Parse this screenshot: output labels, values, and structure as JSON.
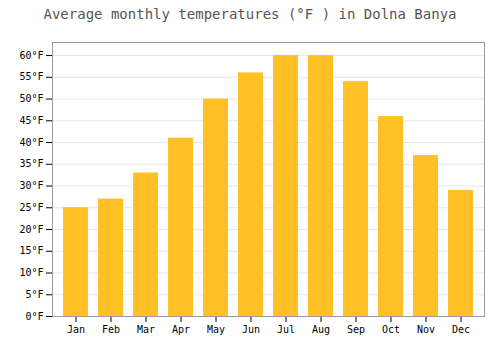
{
  "chart_data": {
    "type": "bar",
    "title": "Average monthly temperatures (°F ) in Dolna Banya",
    "categories": [
      "Jan",
      "Feb",
      "Mar",
      "Apr",
      "May",
      "Jun",
      "Jul",
      "Aug",
      "Sep",
      "Oct",
      "Nov",
      "Dec"
    ],
    "values": [
      25,
      27,
      33,
      41,
      50,
      56,
      60,
      60,
      54,
      46,
      37,
      29
    ],
    "color": "#FFC125",
    "ylim": [
      0,
      63
    ],
    "yticks": [
      {
        "value": 0,
        "label": "0°F"
      },
      {
        "value": 5,
        "label": "5°F"
      },
      {
        "value": 10,
        "label": "10°F"
      },
      {
        "value": 15,
        "label": "15°F"
      },
      {
        "value": 20,
        "label": "20°F"
      },
      {
        "value": 25,
        "label": "25°F"
      },
      {
        "value": 30,
        "label": "30°F"
      },
      {
        "value": 35,
        "label": "35°F"
      },
      {
        "value": 40,
        "label": "40°F"
      },
      {
        "value": 45,
        "label": "45°F"
      },
      {
        "value": 50,
        "label": "50°F"
      },
      {
        "value": 55,
        "label": "55°F"
      },
      {
        "value": 60,
        "label": "60°F"
      }
    ],
    "grid": true
  }
}
